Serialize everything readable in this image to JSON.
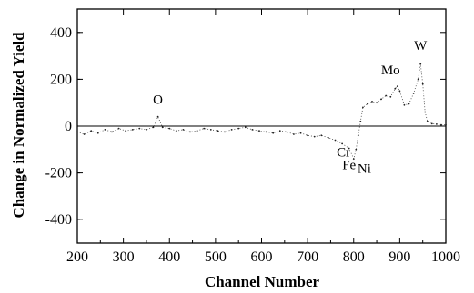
{
  "chart_data": {
    "type": "scatter",
    "title": "",
    "xlabel": "Channel Number",
    "ylabel": "Change in Normalized Yield",
    "xlim": [
      200,
      1000
    ],
    "ylim": [
      -500,
      500
    ],
    "xticks": [
      200,
      300,
      400,
      500,
      600,
      700,
      800,
      900,
      1000
    ],
    "yticks": [
      -400,
      -200,
      0,
      200,
      400
    ],
    "grid": false,
    "zero_line": true,
    "annotations": [
      {
        "text": "O",
        "x": 375,
        "y": 95
      },
      {
        "text": "Mo",
        "x": 880,
        "y": 220
      },
      {
        "text": "W",
        "x": 945,
        "y": 325
      },
      {
        "text": "Cr",
        "x": 778,
        "y": -130
      },
      {
        "text": "Fe",
        "x": 790,
        "y": -185
      },
      {
        "text": "Ni",
        "x": 823,
        "y": -200
      }
    ],
    "series": [
      {
        "points_x": [
          200,
          215,
          230,
          245,
          260,
          275,
          290,
          305,
          320,
          335,
          350,
          365,
          375,
          385,
          400,
          415,
          430,
          445,
          460,
          475,
          490,
          505,
          520,
          535,
          550,
          565,
          580,
          595,
          610,
          625,
          640,
          655,
          670,
          685,
          700,
          715,
          730,
          745,
          760,
          775,
          790,
          800,
          805,
          810,
          815,
          820,
          830,
          840,
          850,
          860,
          870,
          880,
          890,
          895,
          900,
          910,
          920,
          930,
          940,
          945,
          950,
          955,
          960,
          970,
          980,
          990,
          1000
        ],
        "points_y": [
          -25,
          -35,
          -20,
          -30,
          -15,
          -25,
          -10,
          -20,
          -15,
          -10,
          -15,
          -5,
          40,
          -5,
          -10,
          -20,
          -15,
          -25,
          -20,
          -10,
          -15,
          -20,
          -25,
          -15,
          -10,
          -5,
          -15,
          -20,
          -25,
          -30,
          -20,
          -25,
          -35,
          -30,
          -40,
          -45,
          -40,
          -50,
          -60,
          -75,
          -95,
          -140,
          -100,
          -40,
          20,
          80,
          95,
          105,
          100,
          115,
          130,
          125,
          160,
          170,
          150,
          90,
          95,
          140,
          200,
          265,
          180,
          60,
          20,
          10,
          8,
          5,
          5
        ]
      }
    ]
  }
}
